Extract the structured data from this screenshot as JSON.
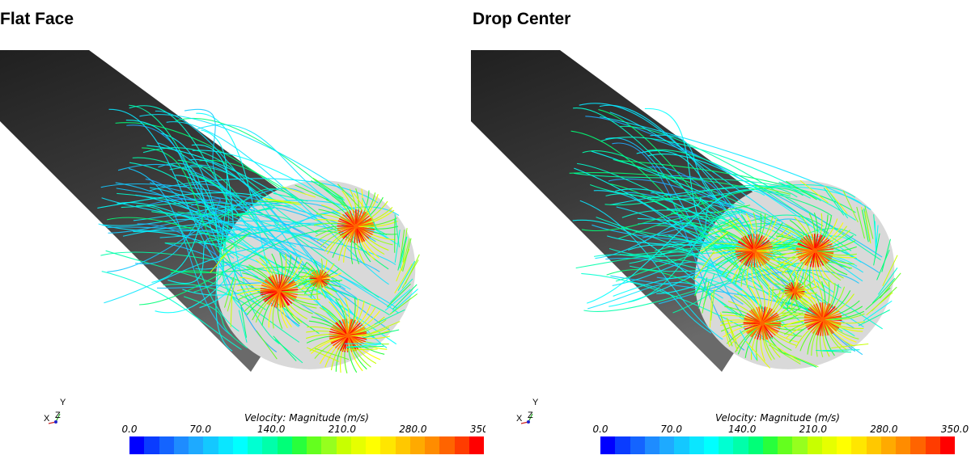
{
  "panels": [
    {
      "title": "Flat Face",
      "variant": "flat"
    },
    {
      "title": "Drop Center",
      "variant": "drop"
    }
  ],
  "triad": {
    "x": "X",
    "y": "Y",
    "z": "Z"
  },
  "legend": {
    "title": "Velocity: Magnitude (m/s)",
    "ticks": [
      "0.0",
      "70.0",
      "140.0",
      "210.0",
      "280.0",
      "350.0"
    ],
    "min": 0.0,
    "max": 350.0,
    "colormap": [
      "#0000ff",
      "#0a3cff",
      "#1464ff",
      "#1e8cff",
      "#1eaaff",
      "#14c8ff",
      "#0ae6ff",
      "#00ffff",
      "#00ffd2",
      "#00ffaa",
      "#00ff78",
      "#28ff3c",
      "#64ff1e",
      "#96ff1e",
      "#c8ff00",
      "#e6ff00",
      "#ffff00",
      "#ffe600",
      "#ffc800",
      "#ffaa00",
      "#ff8c00",
      "#ff6400",
      "#ff3c00",
      "#ff0000"
    ]
  }
}
